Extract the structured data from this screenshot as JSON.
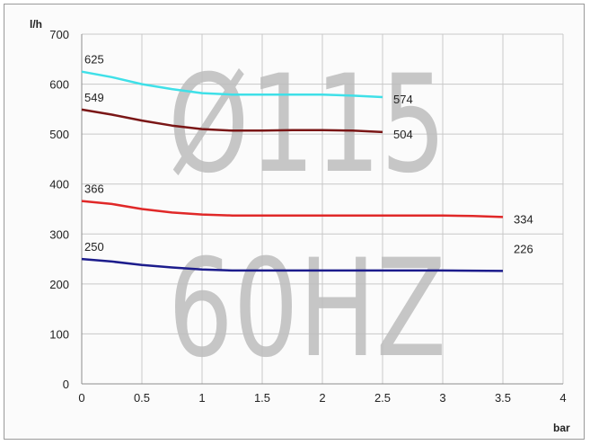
{
  "chart_data": {
    "type": "line",
    "xlabel": "bar",
    "ylabel": "l/h",
    "xlim": [
      0,
      4
    ],
    "ylim": [
      0,
      700
    ],
    "x_ticks": [
      "0",
      "0.5",
      "1",
      "1.5",
      "2",
      "2.5",
      "3",
      "3.5",
      "4"
    ],
    "y_ticks": [
      "0",
      "100",
      "200",
      "300",
      "400",
      "500",
      "600",
      "700"
    ],
    "grid": true,
    "watermark": [
      "Ø115",
      "60HZ"
    ],
    "series": [
      {
        "color": "#3fe0e8",
        "x": [
          0,
          0.25,
          0.5,
          0.75,
          1.0,
          1.25,
          1.5,
          1.75,
          2.0,
          2.25,
          2.5
        ],
        "y": [
          625,
          614,
          600,
          590,
          582,
          579,
          579,
          579,
          579,
          577,
          574
        ],
        "start_label": "625",
        "end_label": "574"
      },
      {
        "color": "#7a1616",
        "x": [
          0,
          0.25,
          0.5,
          0.75,
          1.0,
          1.25,
          1.5,
          1.75,
          2.0,
          2.25,
          2.5
        ],
        "y": [
          549,
          539,
          527,
          517,
          510,
          507,
          507,
          508,
          508,
          507,
          504
        ],
        "start_label": "549",
        "end_label": "504"
      },
      {
        "color": "#e02828",
        "x": [
          0,
          0.25,
          0.5,
          0.75,
          1.0,
          1.25,
          1.5,
          2.0,
          2.5,
          3.0,
          3.25,
          3.5
        ],
        "y": [
          366,
          360,
          350,
          343,
          339,
          337,
          337,
          337,
          337,
          337,
          336,
          334
        ],
        "start_label": "366",
        "end_label": "334"
      },
      {
        "color": "#1c1c8c",
        "x": [
          0,
          0.25,
          0.5,
          0.75,
          1.0,
          1.25,
          1.5,
          2.0,
          2.5,
          3.0,
          3.5
        ],
        "y": [
          250,
          245,
          238,
          233,
          229,
          227,
          227,
          227,
          227,
          227,
          226
        ],
        "start_label": "250",
        "end_label": "226"
      }
    ]
  }
}
